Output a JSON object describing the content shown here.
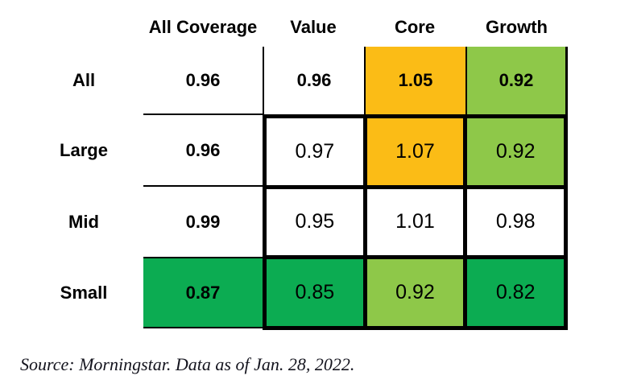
{
  "chart_data": {
    "type": "heatmap",
    "title": "",
    "columns": [
      "All Coverage",
      "Value",
      "Core",
      "Growth"
    ],
    "row_labels": [
      "All",
      "Large",
      "Mid",
      "Small"
    ],
    "rows": [
      {
        "label": "All",
        "values": [
          "0.96",
          "0.96",
          "1.05",
          "0.92"
        ],
        "colors": [
          "white",
          "white",
          "orange",
          "light_green"
        ]
      },
      {
        "label": "Large",
        "values": [
          "0.96",
          "0.97",
          "1.07",
          "0.92"
        ],
        "colors": [
          "white",
          "white",
          "orange",
          "light_green"
        ]
      },
      {
        "label": "Mid",
        "values": [
          "0.99",
          "0.95",
          "1.01",
          "0.98"
        ],
        "colors": [
          "white",
          "white",
          "white",
          "white"
        ]
      },
      {
        "label": "Small",
        "values": [
          "0.87",
          "0.85",
          "0.92",
          "0.82"
        ],
        "colors": [
          "dark_green",
          "dark_green",
          "light_green",
          "dark_green"
        ]
      }
    ],
    "palette": {
      "white": "#FFFFFF",
      "orange": "#FBBC16",
      "light_green": "#8EC849",
      "dark_green": "#0CAC52",
      "grid_black": "#000000"
    },
    "legend_position": "none",
    "layout": "style-box matrix, bold outer All row/column with thin rules, thick black grid around inner 3x3"
  },
  "source_note": "Source: Morningstar. Data as of Jan. 28, 2022."
}
